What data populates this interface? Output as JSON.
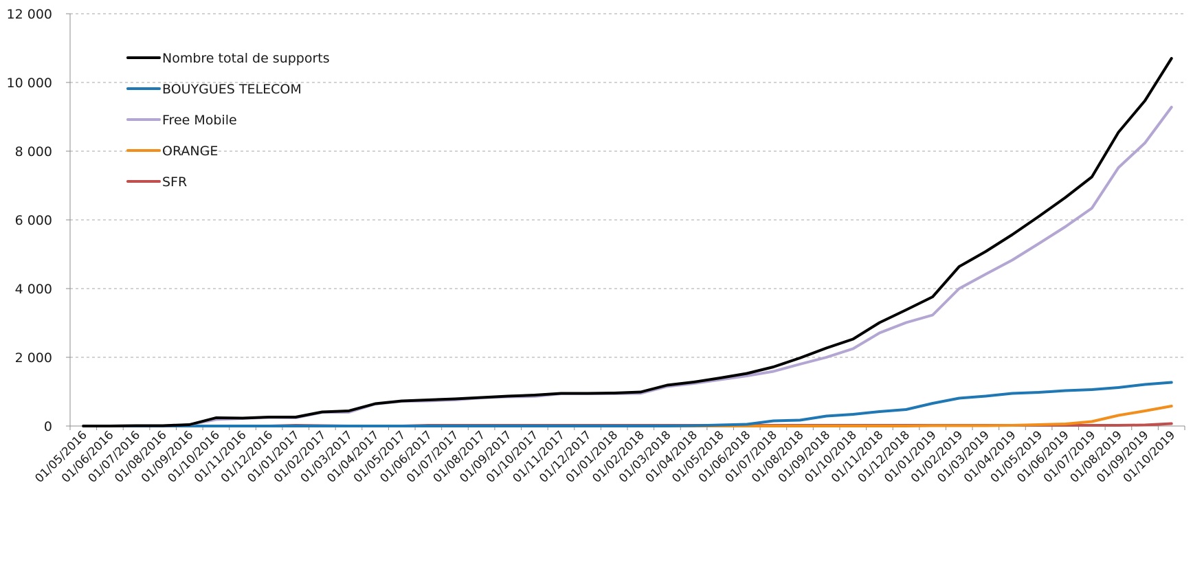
{
  "chart_data": {
    "type": "line",
    "title": "",
    "xlabel": "",
    "ylabel": "",
    "ylim": [
      0,
      12000
    ],
    "y_ticks": [
      {
        "value": 0,
        "label": "0"
      },
      {
        "value": 2000,
        "label": "2 000"
      },
      {
        "value": 4000,
        "label": "4 000"
      },
      {
        "value": 6000,
        "label": "6 000"
      },
      {
        "value": 8000,
        "label": "8 000"
      },
      {
        "value": 10000,
        "label": "10 000"
      },
      {
        "value": 12000,
        "label": "12 000"
      }
    ],
    "grid": "horizontal-dashed",
    "legend_position": "top-left",
    "categories": [
      "01/05/2016",
      "01/06/2016",
      "01/07/2016",
      "01/08/2016",
      "01/09/2016",
      "01/10/2016",
      "01/11/2016",
      "01/12/2016",
      "01/01/2017",
      "01/02/2017",
      "01/03/2017",
      "01/04/2017",
      "01/05/2017",
      "01/06/2017",
      "01/07/2017",
      "01/08/2017",
      "01/09/2017",
      "01/10/2017",
      "01/11/2017",
      "01/12/2017",
      "01/01/2018",
      "01/02/2018",
      "01/03/2018",
      "01/04/2018",
      "01/05/2018",
      "01/06/2018",
      "01/07/2018",
      "01/08/2018",
      "01/09/2018",
      "01/10/2018",
      "01/11/2018",
      "01/12/2018",
      "01/01/2019",
      "01/02/2019",
      "01/03/2019",
      "01/04/2019",
      "01/05/2019",
      "01/06/2019",
      "01/07/2019",
      "01/08/2019",
      "01/09/2019",
      "01/10/2019"
    ],
    "series": [
      {
        "name": "Nombre total de supports",
        "color": "#000000",
        "values": [
          0,
          0,
          10,
          10,
          40,
          240,
          230,
          260,
          260,
          410,
          440,
          650,
          730,
          760,
          790,
          830,
          870,
          900,
          950,
          950,
          960,
          990,
          1190,
          1280,
          1400,
          1530,
          1720,
          1980,
          2270,
          2530,
          3010,
          3380,
          3760,
          4640,
          5080,
          5570,
          6100,
          6650,
          7250,
          8550,
          9470,
          10700
        ]
      },
      {
        "name": "BOUYGUES TELECOM",
        "color": "#1f77b4",
        "values": [
          0,
          0,
          0,
          0,
          0,
          0,
          0,
          0,
          0,
          0,
          0,
          0,
          0,
          0,
          0,
          0,
          0,
          0,
          0,
          0,
          0,
          0,
          0,
          10,
          30,
          50,
          150,
          170,
          290,
          340,
          420,
          480,
          660,
          810,
          870,
          950,
          980,
          1030,
          1060,
          1120,
          1210,
          1270
        ]
      },
      {
        "name": "Free Mobile",
        "color": "#b3a6d2",
        "values": [
          0,
          0,
          10,
          10,
          40,
          190,
          220,
          250,
          240,
          400,
          400,
          640,
          720,
          730,
          760,
          820,
          850,
          860,
          940,
          940,
          940,
          950,
          1150,
          1240,
          1350,
          1460,
          1590,
          1800,
          2000,
          2250,
          2710,
          3010,
          3230,
          4000,
          4420,
          4830,
          5310,
          5800,
          6340,
          7520,
          8240,
          9280
        ]
      },
      {
        "name": "ORANGE",
        "color": "#f28e1c",
        "values": [
          0,
          0,
          0,
          0,
          0,
          0,
          0,
          0,
          0,
          0,
          0,
          0,
          0,
          0,
          0,
          0,
          0,
          0,
          0,
          0,
          0,
          0,
          0,
          0,
          0,
          0,
          0,
          0,
          0,
          0,
          0,
          0,
          10,
          10,
          10,
          20,
          40,
          60,
          130,
          310,
          440,
          580
        ]
      },
      {
        "name": "SFR",
        "color": "#c0504d",
        "values": [
          0,
          0,
          0,
          0,
          0,
          0,
          0,
          0,
          20,
          10,
          0,
          0,
          0,
          20,
          20,
          20,
          20,
          20,
          20,
          20,
          20,
          20,
          20,
          20,
          20,
          20,
          20,
          20,
          20,
          20,
          20,
          20,
          20,
          20,
          20,
          20,
          20,
          20,
          20,
          20,
          30,
          70
        ]
      }
    ]
  }
}
